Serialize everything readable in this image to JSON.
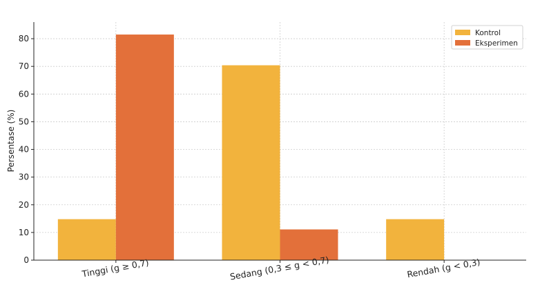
{
  "chart_data": {
    "type": "bar",
    "title": "",
    "xlabel": "",
    "ylabel": "Persentase (%)",
    "categories": [
      "Tinggi (g ≥ 0,7)",
      "Sedang (0,3 ≤ g < 0,7)",
      "Rendah (g < 0,3)"
    ],
    "series": [
      {
        "name": "Kontrol",
        "values": [
          14.8,
          70.4,
          14.8
        ],
        "color": "#F2B33D"
      },
      {
        "name": "Eksperimen",
        "values": [
          81.5,
          11.1,
          0
        ],
        "color": "#E3703A"
      }
    ],
    "ylim": [
      0,
      86
    ],
    "yticks": [
      0,
      10,
      20,
      30,
      40,
      50,
      60,
      70,
      80
    ],
    "grid": true,
    "legend_position": "top-right"
  }
}
